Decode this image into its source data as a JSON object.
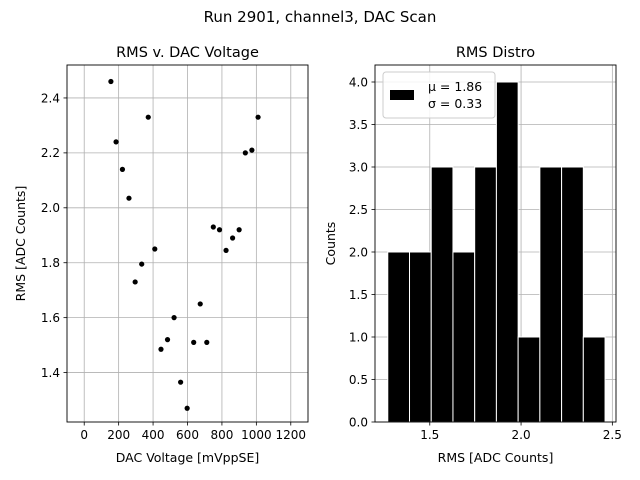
{
  "chart_data": {
    "suptitle": "Run 2901, channel3, DAC Scan",
    "panels": [
      {
        "type": "scatter",
        "title": "RMS v. DAC Voltage",
        "xlabel": "DAC Voltage [mVppSE]",
        "ylabel": "RMS [ADC Counts]",
        "xlim": [
          -100,
          1300
        ],
        "ylim": [
          1.22,
          2.52
        ],
        "xticks": [
          0,
          200,
          400,
          600,
          800,
          1000,
          1200
        ],
        "yticks": [
          1.4,
          1.6,
          1.8,
          2.0,
          2.2,
          2.4
        ],
        "xtick_labels": [
          "0",
          "200",
          "400",
          "600",
          "800",
          "1000",
          "1200"
        ],
        "ytick_labels": [
          "1.4",
          "1.6",
          "1.8",
          "2.0",
          "2.2",
          "2.4"
        ],
        "grid": true,
        "color": "#000000",
        "points": [
          {
            "x": 155,
            "y": 2.46
          },
          {
            "x": 185,
            "y": 2.24
          },
          {
            "x": 222,
            "y": 2.14
          },
          {
            "x": 260,
            "y": 2.035
          },
          {
            "x": 296,
            "y": 1.73
          },
          {
            "x": 334,
            "y": 1.795
          },
          {
            "x": 372,
            "y": 2.33
          },
          {
            "x": 410,
            "y": 1.85
          },
          {
            "x": 446,
            "y": 1.485
          },
          {
            "x": 484,
            "y": 1.52
          },
          {
            "x": 522,
            "y": 1.6
          },
          {
            "x": 560,
            "y": 1.365
          },
          {
            "x": 598,
            "y": 1.27
          },
          {
            "x": 636,
            "y": 1.51
          },
          {
            "x": 674,
            "y": 1.65
          },
          {
            "x": 712,
            "y": 1.51
          },
          {
            "x": 750,
            "y": 1.93
          },
          {
            "x": 786,
            "y": 1.92
          },
          {
            "x": 824,
            "y": 1.845
          },
          {
            "x": 862,
            "y": 1.89
          },
          {
            "x": 900,
            "y": 1.92
          },
          {
            "x": 936,
            "y": 2.2
          },
          {
            "x": 974,
            "y": 2.21
          },
          {
            "x": 1010,
            "y": 2.33
          }
        ]
      },
      {
        "type": "bar",
        "title": "RMS Distro",
        "xlabel": "RMS [ADC Counts]",
        "ylabel": "Counts",
        "xlim": [
          1.2,
          2.52
        ],
        "ylim": [
          0,
          4.2
        ],
        "xticks": [
          1.5,
          2.0,
          2.5
        ],
        "yticks": [
          0,
          0.5,
          1.0,
          1.5,
          2.0,
          2.5,
          3.0,
          3.5,
          4.0
        ],
        "xtick_labels": [
          "1.5",
          "2.0",
          "2.5"
        ],
        "ytick_labels": [
          "0.0",
          "0.5",
          "1.0",
          "1.5",
          "2.0",
          "2.5",
          "3.0",
          "3.5",
          "4.0"
        ],
        "grid": true,
        "bar_color": "#000000",
        "bin_edges": [
          1.27,
          1.389,
          1.508,
          1.627,
          1.746,
          1.865,
          1.984,
          2.103,
          2.222,
          2.341,
          2.46
        ],
        "values": [
          2,
          2,
          3,
          2,
          3,
          4,
          1,
          3,
          3,
          1
        ],
        "legend": {
          "placement": "top-left",
          "entries": [
            "μ = 1.86",
            "σ = 0.33"
          ]
        }
      }
    ]
  }
}
